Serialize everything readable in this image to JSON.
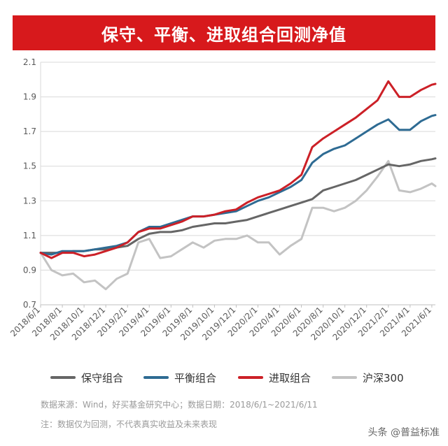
{
  "title": "保守、平衡、进取组合回测净值",
  "chart_data": {
    "type": "line",
    "ylim": [
      0.7,
      2.1
    ],
    "y_ticks": [
      "0.7",
      "0.9",
      "1.1",
      "1.3",
      "1.5",
      "1.7",
      "1.9",
      "2.1"
    ],
    "x_ticks": [
      "2018/6/1",
      "2018/8/1",
      "2018/10/1",
      "2018/12/1",
      "2019/2/1",
      "2019/4/1",
      "2019/6/1",
      "2019/8/1",
      "2019/10/1",
      "2019/12/1",
      "2020/2/1",
      "2020/4/1",
      "2020/6/1",
      "2020/8/1",
      "2020/10/1",
      "2020/12/1",
      "2021/2/1",
      "2021/4/1",
      "2021/6/1"
    ],
    "x_range_months": [
      0,
      36.33
    ],
    "grid": "horizontal",
    "legend_position": "bottom",
    "series": [
      {
        "name": "保守组合",
        "color": "#666666",
        "points": [
          [
            0,
            1.0
          ],
          [
            1,
            1.0
          ],
          [
            2,
            1.0
          ],
          [
            3,
            1.01
          ],
          [
            4,
            1.01
          ],
          [
            5,
            1.02
          ],
          [
            6,
            1.02
          ],
          [
            7,
            1.03
          ],
          [
            8,
            1.04
          ],
          [
            9,
            1.08
          ],
          [
            10,
            1.11
          ],
          [
            11,
            1.12
          ],
          [
            12,
            1.12
          ],
          [
            13,
            1.13
          ],
          [
            14,
            1.15
          ],
          [
            15,
            1.16
          ],
          [
            16,
            1.17
          ],
          [
            17,
            1.17
          ],
          [
            18,
            1.18
          ],
          [
            19,
            1.19
          ],
          [
            20,
            1.21
          ],
          [
            21,
            1.23
          ],
          [
            22,
            1.25
          ],
          [
            23,
            1.27
          ],
          [
            24,
            1.29
          ],
          [
            25,
            1.31
          ],
          [
            26,
            1.36
          ],
          [
            27,
            1.38
          ],
          [
            28,
            1.4
          ],
          [
            29,
            1.42
          ],
          [
            30,
            1.45
          ],
          [
            31,
            1.48
          ],
          [
            32,
            1.51
          ],
          [
            33,
            1.5
          ],
          [
            34,
            1.51
          ],
          [
            35,
            1.53
          ],
          [
            36,
            1.54
          ],
          [
            36.33,
            1.545
          ]
        ]
      },
      {
        "name": "平衡组合",
        "color": "#2e6b93",
        "points": [
          [
            0,
            1.0
          ],
          [
            1,
            0.99
          ],
          [
            2,
            1.01
          ],
          [
            3,
            1.01
          ],
          [
            4,
            1.01
          ],
          [
            5,
            1.02
          ],
          [
            6,
            1.03
          ],
          [
            7,
            1.04
          ],
          [
            8,
            1.06
          ],
          [
            9,
            1.12
          ],
          [
            10,
            1.15
          ],
          [
            11,
            1.15
          ],
          [
            12,
            1.17
          ],
          [
            13,
            1.19
          ],
          [
            14,
            1.21
          ],
          [
            15,
            1.21
          ],
          [
            16,
            1.22
          ],
          [
            17,
            1.23
          ],
          [
            18,
            1.24
          ],
          [
            19,
            1.27
          ],
          [
            20,
            1.3
          ],
          [
            21,
            1.32
          ],
          [
            22,
            1.35
          ],
          [
            23,
            1.38
          ],
          [
            24,
            1.42
          ],
          [
            25,
            1.52
          ],
          [
            26,
            1.57
          ],
          [
            27,
            1.6
          ],
          [
            28,
            1.62
          ],
          [
            29,
            1.66
          ],
          [
            30,
            1.7
          ],
          [
            31,
            1.74
          ],
          [
            32,
            1.77
          ],
          [
            33,
            1.71
          ],
          [
            34,
            1.71
          ],
          [
            35,
            1.76
          ],
          [
            36,
            1.79
          ],
          [
            36.33,
            1.795
          ]
        ]
      },
      {
        "name": "进取组合",
        "color": "#cc2027",
        "points": [
          [
            0,
            1.0
          ],
          [
            1,
            0.97
          ],
          [
            2,
            1.0
          ],
          [
            3,
            1.0
          ],
          [
            4,
            0.98
          ],
          [
            5,
            0.99
          ],
          [
            6,
            1.01
          ],
          [
            7,
            1.03
          ],
          [
            8,
            1.06
          ],
          [
            9,
            1.12
          ],
          [
            10,
            1.14
          ],
          [
            11,
            1.14
          ],
          [
            12,
            1.16
          ],
          [
            13,
            1.18
          ],
          [
            14,
            1.21
          ],
          [
            15,
            1.21
          ],
          [
            16,
            1.22
          ],
          [
            17,
            1.24
          ],
          [
            18,
            1.25
          ],
          [
            19,
            1.29
          ],
          [
            20,
            1.32
          ],
          [
            21,
            1.34
          ],
          [
            22,
            1.36
          ],
          [
            23,
            1.4
          ],
          [
            24,
            1.45
          ],
          [
            25,
            1.61
          ],
          [
            26,
            1.66
          ],
          [
            27,
            1.7
          ],
          [
            28,
            1.74
          ],
          [
            29,
            1.78
          ],
          [
            30,
            1.83
          ],
          [
            31,
            1.88
          ],
          [
            32,
            1.99
          ],
          [
            33,
            1.9
          ],
          [
            34,
            1.9
          ],
          [
            35,
            1.94
          ],
          [
            36,
            1.97
          ],
          [
            36.33,
            1.975
          ]
        ]
      },
      {
        "name": "沪深300",
        "color": "#c3c3c3",
        "points": [
          [
            0,
            1.0
          ],
          [
            1,
            0.9
          ],
          [
            2,
            0.87
          ],
          [
            3,
            0.88
          ],
          [
            4,
            0.83
          ],
          [
            5,
            0.84
          ],
          [
            6,
            0.79
          ],
          [
            7,
            0.85
          ],
          [
            8,
            0.88
          ],
          [
            9,
            1.06
          ],
          [
            10,
            1.08
          ],
          [
            11,
            0.97
          ],
          [
            12,
            0.98
          ],
          [
            13,
            1.02
          ],
          [
            14,
            1.06
          ],
          [
            15,
            1.03
          ],
          [
            16,
            1.07
          ],
          [
            17,
            1.08
          ],
          [
            18,
            1.08
          ],
          [
            19,
            1.1
          ],
          [
            20,
            1.06
          ],
          [
            21,
            1.06
          ],
          [
            22,
            0.99
          ],
          [
            23,
            1.04
          ],
          [
            24,
            1.08
          ],
          [
            25,
            1.26
          ],
          [
            26,
            1.26
          ],
          [
            27,
            1.24
          ],
          [
            28,
            1.26
          ],
          [
            29,
            1.3
          ],
          [
            30,
            1.36
          ],
          [
            31,
            1.44
          ],
          [
            32,
            1.53
          ],
          [
            33,
            1.36
          ],
          [
            34,
            1.35
          ],
          [
            35,
            1.37
          ],
          [
            36,
            1.4
          ],
          [
            36.33,
            1.385
          ]
        ]
      }
    ]
  },
  "footnote": {
    "source": "数据来源：Wind，好买基金研究中心；数据日期：2018/6/1~2021/6/11",
    "disclaimer": "注：数据仅为回测，不代表真实收益及未来表现"
  },
  "watermark": "头条 @普益标准"
}
